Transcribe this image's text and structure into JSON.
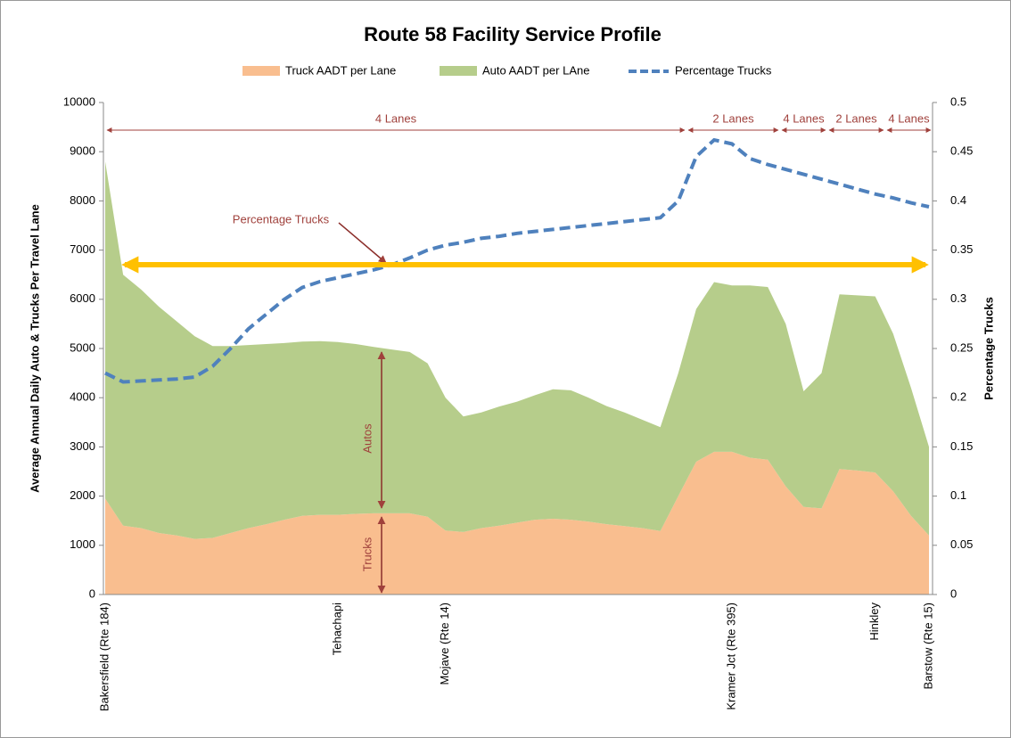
{
  "chart_data": {
    "type": "stacked_area_line",
    "title": "Route 58 Facility Service Profile",
    "y_label": "Average Annual Daily Auto & Trucks Per Travel Lane",
    "y2_label": "Percentage Trucks",
    "categories": [
      "Bakersfield (Rte 184)",
      null,
      null,
      null,
      null,
      null,
      null,
      null,
      null,
      null,
      null,
      null,
      null,
      "Tehachapi",
      null,
      null,
      null,
      null,
      null,
      "Mojave (Rte 14)",
      null,
      null,
      null,
      null,
      null,
      null,
      null,
      null,
      null,
      null,
      null,
      null,
      null,
      null,
      null,
      "Kramer Jct (Rte 395)",
      null,
      null,
      null,
      null,
      null,
      null,
      null,
      "Hinkley",
      null,
      null,
      "Barstow (Rte 15)"
    ],
    "series": [
      {
        "name": "Truck AADT per Lane",
        "color": "#f9be8f",
        "kind": "area",
        "values": [
          1950,
          1400,
          1350,
          1250,
          1200,
          1130,
          1150,
          1250,
          1350,
          1430,
          1520,
          1600,
          1620,
          1620,
          1640,
          1650,
          1650,
          1650,
          1580,
          1300,
          1270,
          1350,
          1400,
          1460,
          1520,
          1540,
          1520,
          1480,
          1430,
          1390,
          1350,
          1290,
          2000,
          2700,
          2900,
          2900,
          2780,
          2740,
          2200,
          1780,
          1750,
          2550,
          2520,
          2480,
          2100,
          1600,
          1200
        ]
      },
      {
        "name": "Auto AADT per LAne",
        "color": "#b6cd8b",
        "kind": "area",
        "values": [
          6850,
          5100,
          4850,
          4600,
          4350,
          4120,
          3900,
          3800,
          3720,
          3660,
          3590,
          3540,
          3530,
          3510,
          3450,
          3380,
          3330,
          3280,
          3120,
          2700,
          2350,
          2350,
          2420,
          2460,
          2530,
          2630,
          2630,
          2520,
          2400,
          2310,
          2200,
          2110,
          2500,
          3100,
          3450,
          3380,
          3500,
          3510,
          3300,
          2350,
          2750,
          3550,
          3560,
          3580,
          3200,
          2600,
          1800
        ]
      },
      {
        "name": "Percentage Trucks",
        "color": "#4f81bd",
        "kind": "line",
        "axis": "y2",
        "values": [
          0.225,
          0.216,
          0.217,
          0.218,
          0.219,
          0.221,
          0.232,
          0.25,
          0.27,
          0.285,
          0.3,
          0.312,
          0.318,
          0.322,
          0.326,
          0.33,
          0.335,
          0.342,
          0.35,
          0.355,
          0.358,
          0.362,
          0.364,
          0.367,
          0.369,
          0.371,
          0.373,
          0.375,
          0.377,
          0.379,
          0.381,
          0.383,
          0.4,
          0.445,
          0.462,
          0.458,
          0.443,
          0.437,
          0.432,
          0.427,
          0.422,
          0.417,
          0.412,
          0.407,
          0.403,
          0.398,
          0.394
        ]
      }
    ],
    "ylim": [
      0,
      10000
    ],
    "yticks": [
      0,
      1000,
      2000,
      3000,
      4000,
      5000,
      6000,
      7000,
      8000,
      9000,
      10000
    ],
    "y2lim": [
      0,
      0.5
    ],
    "y2ticks": [
      0,
      0.05,
      0.1,
      0.15,
      0.2,
      0.25,
      0.3,
      0.35,
      0.4,
      0.45,
      0.5
    ],
    "grid": false,
    "legend": "top",
    "lane_labels": [
      "4 Lanes",
      "2 Lanes",
      "4 Lanes",
      "2 Lanes",
      "4 Lanes"
    ],
    "annotations": [
      "Percentage Trucks",
      "Autos",
      "Trucks"
    ]
  }
}
